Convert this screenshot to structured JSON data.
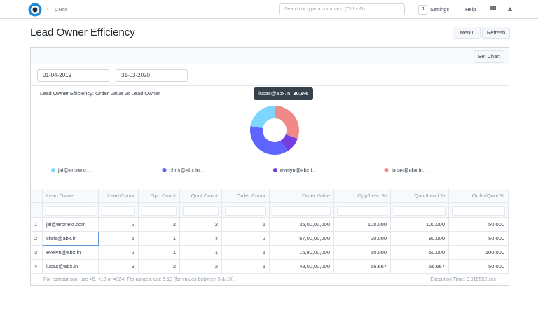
{
  "nav": {
    "breadcrumb": "CRM",
    "search_placeholder": "Search or type a command (Ctrl + G)",
    "avatar": "J",
    "settings": "Settings",
    "help": "Help"
  },
  "page": {
    "title": "Lead Owner Efficiency",
    "menu": "Menu",
    "refresh": "Refresh",
    "set_chart": "Set Chart",
    "filters": [
      "01-04-2019",
      "31-03-2020"
    ]
  },
  "chart_data": {
    "type": "pie",
    "donut": true,
    "title": "Lead Owner Efficiency: Order Value vs Lead Owner",
    "labels": [
      "jai@erpnext....",
      "chris@abx.in...",
      "evelyn@abx.i...",
      "lucas@abx.in..."
    ],
    "values": [
      22.3,
      36.4,
      10.7,
      30.6
    ],
    "colors": [
      "#7cd6fd",
      "#5e64ff",
      "#743ee2",
      "#f08a8a"
    ],
    "tooltip": {
      "name": "lucas@abx.in:",
      "value_label": "30.6%"
    }
  },
  "table": {
    "columns": [
      "Lead Owner",
      "Lead Count",
      "Opp Count",
      "Quot Count",
      "Order Count",
      "Order Value",
      "Opp/Lead %",
      "Quot/Lead %",
      "Order/Quot %"
    ],
    "rows": [
      [
        "1",
        "jai@erpnext.com",
        "2",
        "2",
        "2",
        "1",
        "35,00,00,000",
        "100.000",
        "100.000",
        "50.000"
      ],
      [
        "2",
        "chris@abx.in",
        "5",
        "1",
        "4",
        "2",
        "57,00,00,000",
        "20.000",
        "80.000",
        "50.000"
      ],
      [
        "3",
        "evelyn@abx.in",
        "2",
        "1",
        "1",
        "1",
        "16,80,00,000",
        "50.000",
        "50.000",
        "100.000"
      ],
      [
        "4",
        "lucas@abx.in",
        "3",
        "2",
        "2",
        "1",
        "48,00,00,000",
        "66.667",
        "66.667",
        "50.000"
      ]
    ],
    "footer_hint": "For comparison, use >5, <10 or =324. For ranges, use 5:10 (for values between 5 & 10).",
    "execution_time": "Execution Time: 0.015552 sec"
  }
}
